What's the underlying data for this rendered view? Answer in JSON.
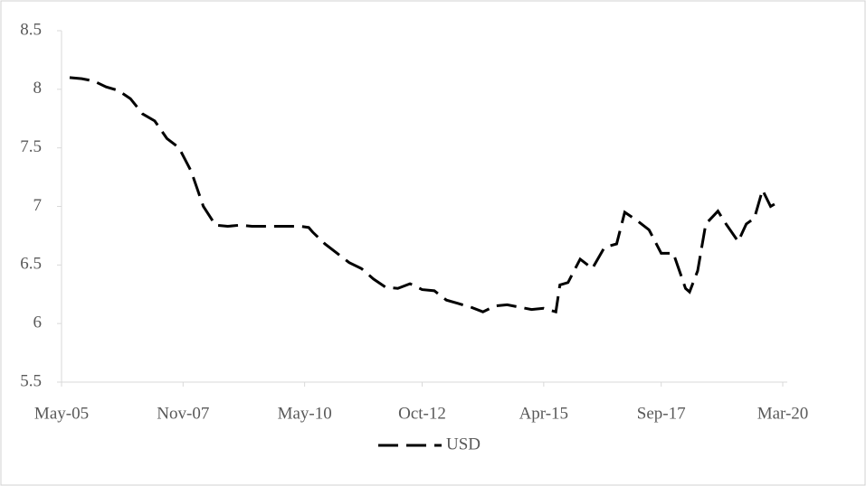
{
  "chart_data": {
    "type": "line",
    "x": [
      "2005-07",
      "2005-10",
      "2006-01",
      "2006-04",
      "2006-07",
      "2006-10",
      "2007-01",
      "2007-04",
      "2007-07",
      "2007-10",
      "2008-01",
      "2008-04",
      "2008-07",
      "2008-10",
      "2009-01",
      "2009-04",
      "2009-07",
      "2009-10",
      "2010-01",
      "2010-04",
      "2010-06",
      "2010-07",
      "2010-10",
      "2011-01",
      "2011-04",
      "2011-07",
      "2011-10",
      "2012-01",
      "2012-04",
      "2012-07",
      "2012-10",
      "2013-01",
      "2013-04",
      "2013-07",
      "2013-10",
      "2014-01",
      "2014-04",
      "2014-07",
      "2014-10",
      "2015-01",
      "2015-04",
      "2015-07",
      "2015-08",
      "2015-10",
      "2016-01",
      "2016-04",
      "2016-07",
      "2016-10",
      "2016-12",
      "2017-03",
      "2017-06",
      "2017-09",
      "2017-12",
      "2018-03",
      "2018-04",
      "2018-06",
      "2018-08",
      "2018-11",
      "2019-01",
      "2019-04",
      "2019-06",
      "2019-08",
      "2019-10",
      "2019-12",
      "2020-01"
    ],
    "series": [
      {
        "name": "USD",
        "color": "#000000",
        "values": [
          8.1,
          8.09,
          8.07,
          8.02,
          7.99,
          7.92,
          7.79,
          7.73,
          7.58,
          7.5,
          7.3,
          7.0,
          6.84,
          6.83,
          6.84,
          6.83,
          6.83,
          6.83,
          6.83,
          6.83,
          6.82,
          6.78,
          6.68,
          6.6,
          6.52,
          6.47,
          6.38,
          6.31,
          6.3,
          6.34,
          6.29,
          6.28,
          6.2,
          6.17,
          6.14,
          6.1,
          6.15,
          6.16,
          6.14,
          6.12,
          6.13,
          6.1,
          6.33,
          6.35,
          6.55,
          6.47,
          6.65,
          6.68,
          6.95,
          6.88,
          6.8,
          6.6,
          6.6,
          6.3,
          6.27,
          6.45,
          6.85,
          6.96,
          6.85,
          6.7,
          6.85,
          6.9,
          7.14,
          7.0,
          7.02
        ]
      }
    ],
    "xlim": [
      "2005-05",
      "2020-03"
    ],
    "xticks": [
      {
        "value": "2005-05",
        "label": "May-05"
      },
      {
        "value": "2007-11",
        "label": "Nov-07"
      },
      {
        "value": "2010-05",
        "label": "May-10"
      },
      {
        "value": "2012-10",
        "label": "Oct-12"
      },
      {
        "value": "2015-04",
        "label": "Apr-15"
      },
      {
        "value": "2017-09",
        "label": "Sep-17"
      },
      {
        "value": "2020-03",
        "label": "Mar-20"
      }
    ],
    "ylim": [
      5.5,
      8.5
    ],
    "yticks": [
      5.5,
      6,
      6.5,
      7,
      7.5,
      8,
      8.5
    ],
    "line_style": "dashed",
    "legend": "bottom"
  }
}
